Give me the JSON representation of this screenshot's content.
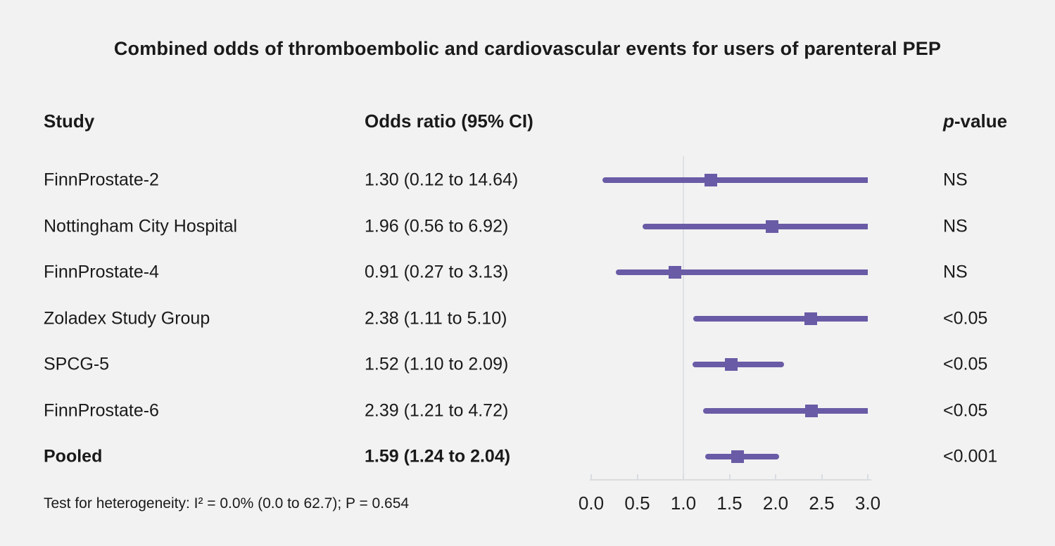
{
  "title": "Combined odds of thromboembolic and cardiovascular events for users of parenteral PEP",
  "columns": {
    "study": "Study",
    "odds_ratio": "Odds ratio (95% CI)",
    "p_value_prefix": "p",
    "p_value_suffix": "-value"
  },
  "footnote": "Test for heterogeneity: I² = 0.0% (0.0 to 62.7); P = 0.654",
  "colors": {
    "background": "#f2f2f2",
    "accent_purple": "#6a5ba6",
    "reference_line": "#dde1e6",
    "axis_line": "#d9dce0",
    "text": "#1a1a1a"
  },
  "chart_data": {
    "type": "scatter",
    "variant": "forest-plot",
    "xlabel": "",
    "ylabel": "",
    "xlim": [
      0.0,
      3.0
    ],
    "x_ticks": [
      {
        "value": 0.0,
        "label": "0.0"
      },
      {
        "value": 0.5,
        "label": "0.5"
      },
      {
        "value": 1.0,
        "label": "1.0"
      },
      {
        "value": 1.5,
        "label": "1.5"
      },
      {
        "value": 2.0,
        "label": "2.0"
      },
      {
        "value": 2.5,
        "label": "2.5"
      },
      {
        "value": 3.0,
        "label": "3.0"
      }
    ],
    "reference_line_x": 1.0,
    "grid": false,
    "legend": false,
    "rows": [
      {
        "study": "FinnProstate-2",
        "or_text": "1.30 (0.12 to 14.64)",
        "or": 1.3,
        "ci_low": 0.12,
        "ci_high": 14.64,
        "p": "NS",
        "bold": false
      },
      {
        "study": "Nottingham City Hospital",
        "or_text": "1.96 (0.56 to 6.92)",
        "or": 1.96,
        "ci_low": 0.56,
        "ci_high": 6.92,
        "p": "NS",
        "bold": false
      },
      {
        "study": "FinnProstate-4",
        "or_text": "0.91 (0.27 to 3.13)",
        "or": 0.91,
        "ci_low": 0.27,
        "ci_high": 3.13,
        "p": "NS",
        "bold": false
      },
      {
        "study": "Zoladex Study Group",
        "or_text": "2.38 (1.11 to 5.10)",
        "or": 2.38,
        "ci_low": 1.11,
        "ci_high": 5.1,
        "p": "<0.05",
        "bold": false
      },
      {
        "study": "SPCG-5",
        "or_text": "1.52 (1.10 to 2.09)",
        "or": 1.52,
        "ci_low": 1.1,
        "ci_high": 2.09,
        "p": "<0.05",
        "bold": false
      },
      {
        "study": "FinnProstate-6",
        "or_text": "2.39 (1.21 to 4.72)",
        "or": 2.39,
        "ci_low": 1.21,
        "ci_high": 4.72,
        "p": "<0.05",
        "bold": false
      },
      {
        "study": "Pooled",
        "or_text": "1.59 (1.24 to 2.04)",
        "or": 1.59,
        "ci_low": 1.24,
        "ci_high": 2.04,
        "p": "<0.001",
        "bold": true
      }
    ]
  }
}
